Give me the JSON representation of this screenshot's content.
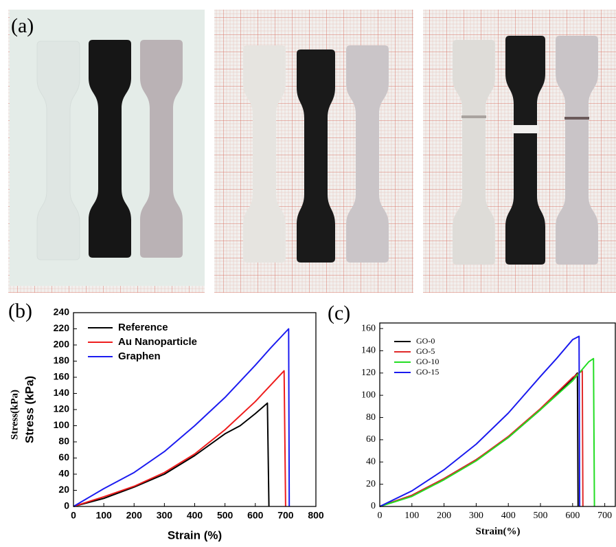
{
  "photo_label": "(a)",
  "chart_data": [
    {
      "type": "line",
      "panel": "(b)",
      "x_label": "Strain (%)",
      "y_label": "Stress (kPa)",
      "xlim": [
        0,
        800
      ],
      "xticks": [
        0,
        100,
        200,
        300,
        400,
        500,
        600,
        700,
        800
      ],
      "ylim": [
        0,
        240
      ],
      "yticks": [
        0,
        20,
        40,
        60,
        80,
        100,
        120,
        140,
        160,
        180,
        200,
        220,
        240
      ],
      "legend": "upper-left",
      "series": [
        {
          "name": "Reference",
          "color": "#000000",
          "x": [
            0,
            100,
            200,
            300,
            400,
            500,
            550,
            600,
            640,
            645
          ],
          "values": [
            0,
            10,
            24,
            40,
            63,
            90,
            100,
            115,
            128,
            0
          ]
        },
        {
          "name": "Au Nanoparticle",
          "color": "#ee1c1c",
          "x": [
            0,
            100,
            200,
            300,
            400,
            500,
            600,
            650,
            695,
            700
          ],
          "values": [
            0,
            12,
            25,
            42,
            65,
            95,
            130,
            150,
            168,
            0
          ]
        },
        {
          "name": "Graphen",
          "color": "#1c1cf0",
          "x": [
            0,
            100,
            200,
            300,
            400,
            500,
            600,
            650,
            710,
            712
          ],
          "values": [
            0,
            22,
            42,
            68,
            100,
            135,
            175,
            196,
            220,
            0
          ]
        }
      ]
    },
    {
      "type": "line",
      "panel": "(c)",
      "x_label": "Strain(%)",
      "y_label": "Stress(kPa)",
      "xlim": [
        0,
        735
      ],
      "xticks": [
        0,
        100,
        200,
        300,
        400,
        500,
        600,
        700
      ],
      "ylim": [
        0,
        165
      ],
      "yticks": [
        0,
        20,
        40,
        60,
        80,
        100,
        120,
        140,
        160
      ],
      "legend": "upper-left",
      "series": [
        {
          "name": "GO-0",
          "color": "#000000",
          "x": [
            0,
            100,
            200,
            300,
            400,
            500,
            600,
            615,
            617
          ],
          "values": [
            0,
            10,
            25,
            42,
            62,
            87,
            115,
            120,
            0
          ]
        },
        {
          "name": "GO-5",
          "color": "#e02828",
          "x": [
            0,
            100,
            200,
            300,
            400,
            500,
            600,
            630,
            632
          ],
          "values": [
            0,
            10,
            25,
            42,
            63,
            88,
            116,
            122,
            0
          ]
        },
        {
          "name": "GO-10",
          "color": "#22dd22",
          "x": [
            0,
            100,
            200,
            300,
            400,
            500,
            600,
            650,
            665,
            668
          ],
          "values": [
            0,
            9,
            24,
            41,
            62,
            87,
            113,
            130,
            133,
            0
          ]
        },
        {
          "name": "GO-15",
          "color": "#1a1aee",
          "x": [
            0,
            100,
            200,
            300,
            400,
            500,
            550,
            600,
            620,
            622
          ],
          "values": [
            0,
            14,
            33,
            56,
            84,
            117,
            133,
            150,
            153,
            0
          ]
        }
      ]
    }
  ]
}
